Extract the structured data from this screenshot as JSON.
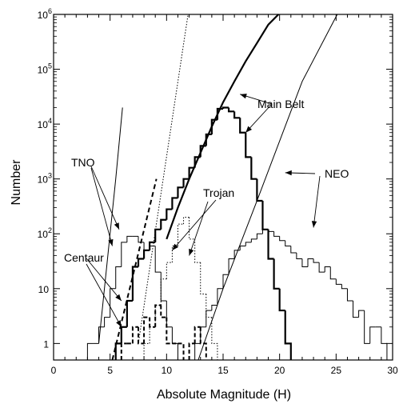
{
  "chart_data": {
    "type": "line",
    "xlabel": "Absolute Magnitude (H)",
    "ylabel": "Number",
    "xlim": [
      0,
      30
    ],
    "ylim": [
      0.5,
      1000000
    ],
    "yscale": "log",
    "grid": false,
    "x_ticks": [
      "0",
      "5",
      "10",
      "15",
      "20",
      "25",
      "30"
    ],
    "y_ticks": [
      {
        "value": 1,
        "base": "1",
        "exp": ""
      },
      {
        "value": 10,
        "base": "10",
        "exp": ""
      },
      {
        "value": 100,
        "base": "10",
        "exp": "2"
      },
      {
        "value": 1000,
        "base": "10",
        "exp": "3"
      },
      {
        "value": 10000,
        "base": "10",
        "exp": "4"
      },
      {
        "value": 100000,
        "base": "10",
        "exp": "5"
      },
      {
        "value": 1000000,
        "base": "10",
        "exp": "6"
      }
    ],
    "series": [
      {
        "name": "Main Belt",
        "style": "histogram-thick",
        "bins": [
          [
            5.5,
            6,
            1
          ],
          [
            6,
            6.5,
            2
          ],
          [
            6.5,
            7,
            6
          ],
          [
            7,
            7.5,
            25
          ],
          [
            7.5,
            8,
            35
          ],
          [
            8,
            8.5,
            50
          ],
          [
            8.5,
            9,
            70
          ],
          [
            9,
            9.5,
            120
          ],
          [
            9.5,
            10,
            180
          ],
          [
            10,
            10.5,
            280
          ],
          [
            10.5,
            11,
            450
          ],
          [
            11,
            11.5,
            700
          ],
          [
            11.5,
            12,
            1000
          ],
          [
            12,
            12.5,
            1600
          ],
          [
            12.5,
            13,
            2500
          ],
          [
            13,
            13.5,
            4000
          ],
          [
            13.5,
            14,
            6500
          ],
          [
            14,
            14.5,
            12000
          ],
          [
            14.5,
            15,
            19000
          ],
          [
            15,
            15.5,
            20000
          ],
          [
            15.5,
            16,
            17000
          ],
          [
            16,
            16.5,
            13000
          ],
          [
            16.5,
            17,
            7000
          ],
          [
            17,
            17.5,
            2500
          ],
          [
            17.5,
            18,
            1000
          ],
          [
            18,
            18.5,
            400
          ],
          [
            18.5,
            19,
            120
          ],
          [
            19,
            19.5,
            35
          ],
          [
            19.5,
            20,
            10
          ],
          [
            20,
            20.5,
            4
          ],
          [
            20.5,
            21,
            1
          ]
        ]
      },
      {
        "name": "Main Belt",
        "style": "curve-thick",
        "points": [
          [
            10,
            80
          ],
          [
            11,
            300
          ],
          [
            12,
            1000
          ],
          [
            13,
            3000
          ],
          [
            14,
            9000
          ],
          [
            15,
            25000
          ],
          [
            16,
            60000
          ],
          [
            17,
            140000
          ],
          [
            18,
            300000
          ],
          [
            19,
            650000
          ],
          [
            19.9,
            1000000
          ]
        ]
      },
      {
        "name": "TNO",
        "style": "histogram-thin",
        "bins": [
          [
            3,
            3.5,
            1
          ],
          [
            3.5,
            4,
            1
          ],
          [
            4,
            4.5,
            2
          ],
          [
            4.5,
            5,
            3
          ],
          [
            5,
            5.5,
            10
          ],
          [
            5.5,
            6,
            25
          ],
          [
            6,
            6.5,
            70
          ],
          [
            6.5,
            7,
            90
          ],
          [
            7,
            7.5,
            90
          ],
          [
            7.5,
            8,
            70
          ],
          [
            8,
            8.5,
            50
          ],
          [
            8.5,
            9,
            60
          ],
          [
            9,
            9.5,
            20
          ],
          [
            9.5,
            10,
            6
          ],
          [
            10,
            10.5,
            2
          ],
          [
            10.5,
            11,
            1
          ]
        ]
      },
      {
        "name": "TNO",
        "style": "line-thin",
        "points": [
          [
            4,
            1
          ],
          [
            5.5,
            1000
          ],
          [
            6.1,
            20000
          ]
        ]
      },
      {
        "name": "Centaur",
        "style": "histogram-dashed",
        "bins": [
          [
            6,
            6.5,
            1
          ],
          [
            6.5,
            7,
            1
          ],
          [
            7,
            7.5,
            2
          ],
          [
            7.5,
            8,
            1
          ],
          [
            8,
            8.5,
            3
          ],
          [
            8.5,
            9,
            2
          ],
          [
            9,
            9.5,
            5
          ],
          [
            9.5,
            10,
            3
          ],
          [
            10,
            10.5,
            1
          ],
          [
            10.5,
            11,
            1
          ],
          [
            11,
            11.5,
            1
          ],
          [
            12,
            12.5,
            1
          ],
          [
            12.5,
            13,
            2
          ],
          [
            13,
            13.5,
            1
          ]
        ]
      },
      {
        "name": "Centaur",
        "style": "line-dashed",
        "points": [
          [
            5.2,
            0.5
          ],
          [
            9.1,
            1000
          ]
        ]
      },
      {
        "name": "Trojan",
        "style": "histogram-dotted",
        "bins": [
          [
            8,
            8.5,
            1
          ],
          [
            8.5,
            9,
            2
          ],
          [
            9,
            9.5,
            5
          ],
          [
            9.5,
            10,
            15
          ],
          [
            10,
            10.5,
            30
          ],
          [
            10.5,
            11,
            60
          ],
          [
            11,
            11.5,
            150
          ],
          [
            11.5,
            12,
            200
          ],
          [
            12,
            12.5,
            80
          ],
          [
            12.5,
            13,
            30
          ],
          [
            13,
            13.5,
            8
          ],
          [
            13.5,
            14,
            3
          ],
          [
            14,
            14.5,
            1
          ]
        ]
      },
      {
        "name": "Trojan",
        "style": "line-dotted",
        "points": [
          [
            7.5,
            1
          ],
          [
            11.9,
            1000000
          ]
        ]
      },
      {
        "name": "NEO",
        "style": "histogram-thin",
        "bins": [
          [
            12.5,
            13,
            1
          ],
          [
            13,
            13.5,
            2
          ],
          [
            13.5,
            14,
            4
          ],
          [
            14,
            14.5,
            5
          ],
          [
            14.5,
            15,
            10
          ],
          [
            15,
            15.5,
            18
          ],
          [
            15.5,
            16,
            35
          ],
          [
            16,
            16.5,
            50
          ],
          [
            16.5,
            17,
            60
          ],
          [
            17,
            17.5,
            70
          ],
          [
            17.5,
            18,
            80
          ],
          [
            18,
            18.5,
            100
          ],
          [
            18.5,
            19,
            120
          ],
          [
            19,
            19.5,
            110
          ],
          [
            19.5,
            20,
            90
          ],
          [
            20,
            20.5,
            75
          ],
          [
            20.5,
            21,
            60
          ],
          [
            21,
            21.5,
            45
          ],
          [
            21.5,
            22,
            35
          ],
          [
            22,
            22.5,
            25
          ],
          [
            22.5,
            23,
            35
          ],
          [
            23,
            23.5,
            30
          ],
          [
            23.5,
            24,
            20
          ],
          [
            24,
            24.5,
            25
          ],
          [
            24.5,
            25,
            15
          ],
          [
            25,
            25.5,
            12
          ],
          [
            25.5,
            26,
            10
          ],
          [
            26,
            26.5,
            6
          ],
          [
            26.5,
            27,
            3
          ],
          [
            27,
            27.5,
            4
          ],
          [
            27.5,
            28,
            1
          ],
          [
            28,
            28.5,
            2
          ],
          [
            28.5,
            29,
            2
          ],
          [
            29,
            29.5,
            1
          ]
        ]
      },
      {
        "name": "NEO",
        "style": "line-thin",
        "points": [
          [
            12.8,
            0.5
          ],
          [
            15,
            10
          ],
          [
            18,
            400
          ],
          [
            22,
            60000
          ],
          [
            25.1,
            1000000
          ]
        ]
      }
    ],
    "annotations": [
      {
        "text": "Main Belt",
        "arrow_to": [
          [
            16.5,
            35000
          ],
          [
            17,
            7000
          ]
        ]
      },
      {
        "text": "NEO",
        "arrow_to": [
          [
            20.5,
            1300
          ],
          [
            23,
            130
          ]
        ]
      },
      {
        "text": "TNO",
        "arrow_to": [
          [
            5.8,
            120
          ],
          [
            5.2,
            60
          ]
        ]
      },
      {
        "text": "Trojan",
        "arrow_to": [
          [
            10.5,
            50
          ],
          [
            12,
            40
          ]
        ]
      },
      {
        "text": "Centaur",
        "arrow_to": [
          [
            6,
            6
          ],
          [
            6,
            2
          ]
        ]
      }
    ]
  }
}
